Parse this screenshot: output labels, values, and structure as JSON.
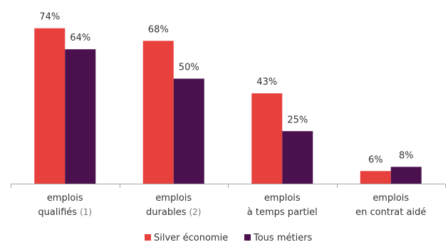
{
  "chart_data": {
    "type": "bar",
    "ylim": [
      0,
      80
    ],
    "categories": [
      {
        "line1": "emplois",
        "line2": "qualifiés",
        "note": "(1)"
      },
      {
        "line1": "emplois",
        "line2": "durables",
        "note": "(2)"
      },
      {
        "line1": "emplois",
        "line2": "à temps partiel",
        "note": ""
      },
      {
        "line1": "emplois",
        "line2": "en contrat aidé",
        "note": ""
      }
    ],
    "series": [
      {
        "name": "Silver économie",
        "color": "#e8403c",
        "values": [
          74,
          68,
          43,
          6
        ],
        "labels": [
          "74%",
          "68%",
          "43%",
          "6%"
        ]
      },
      {
        "name": "Tous métiers",
        "color": "#4a114e",
        "values": [
          64,
          50,
          25,
          8
        ],
        "labels": [
          "64%",
          "50%",
          "25%",
          "8%"
        ]
      }
    ],
    "legend_position": "bottom-center",
    "grid": false
  }
}
